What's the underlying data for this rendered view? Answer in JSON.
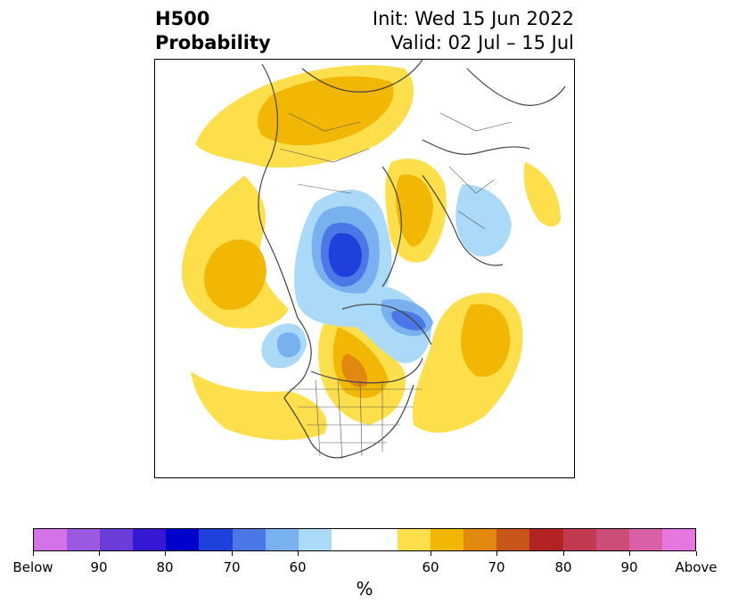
{
  "title": {
    "left_line1": "H500",
    "left_line2": "Probability",
    "right_line1": "Init: Wed 15 Jun 2022",
    "right_line2": "Valid: 02 Jul – 15 Jul"
  },
  "colorbar": {
    "unit": "%",
    "colors": [
      "#d373e8",
      "#9a59e0",
      "#6a3cd8",
      "#3718d4",
      "#0000cc",
      "#2040dc",
      "#4b78e6",
      "#78b0f0",
      "#aadaf8",
      "#ffffff",
      "#ffffff",
      "#fddf4b",
      "#f2b705",
      "#e1880e",
      "#c8561a",
      "#b42323",
      "#c23a50",
      "#cc4e78",
      "#d95fa7",
      "#e478df"
    ],
    "tick_labels": [
      "Below",
      "90",
      "80",
      "70",
      "60",
      "60",
      "70",
      "80",
      "90",
      "Above"
    ]
  },
  "map": {
    "below_color_light": "#aadaf8",
    "below_color_mid": "#78b0f0",
    "below_color_strong": "#4b78e6",
    "below_color_core": "#2040dc",
    "above_color_light": "#fddf4b",
    "above_color_mid": "#f2b705",
    "above_color_strong": "#e1880e"
  }
}
